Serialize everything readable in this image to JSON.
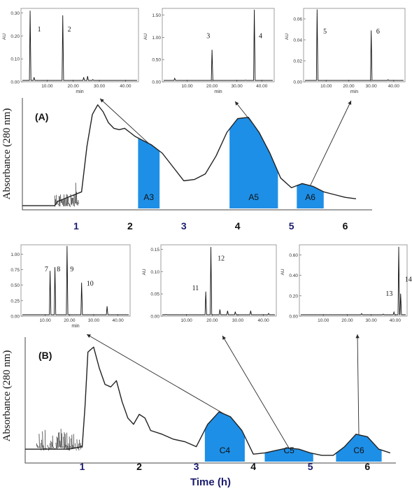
{
  "colors": {
    "fraction_fill": "#1e8fe6",
    "axis_number": "#1c1c6e",
    "trace": "#222222",
    "noise": "#3b3b3b",
    "arrow": "#2a2a2a"
  },
  "chart_data": [
    {
      "id": "panelA-main",
      "type": "line",
      "panel_label": "(A)",
      "ylabel": "Absorbance (280 nm)",
      "xlabel": "",
      "xlim": [
        0,
        6.5
      ],
      "x_ticks": [
        "1",
        "2",
        "3",
        "4",
        "5",
        "6"
      ],
      "x_tick_values": [
        1,
        2,
        3,
        4,
        5,
        6
      ],
      "trace": {
        "x": [
          0,
          0.6,
          0.65,
          1.1,
          1.2,
          1.3,
          1.4,
          1.5,
          1.6,
          1.7,
          1.8,
          1.9,
          2.0,
          2.1,
          2.2,
          2.4,
          2.6,
          2.8,
          3.0,
          3.2,
          3.4,
          3.6,
          3.8,
          4.0,
          4.2,
          4.4,
          4.6,
          4.8,
          5.0,
          5.2,
          5.4,
          5.6,
          5.8,
          6.0,
          6.2
        ],
        "y": [
          0.02,
          0.02,
          0.05,
          0.12,
          0.45,
          0.68,
          0.75,
          0.7,
          0.62,
          0.58,
          0.57,
          0.58,
          0.55,
          0.52,
          0.5,
          0.46,
          0.4,
          0.3,
          0.2,
          0.21,
          0.25,
          0.38,
          0.55,
          0.65,
          0.66,
          0.55,
          0.4,
          0.22,
          0.15,
          0.18,
          0.16,
          0.12,
          0.1,
          0.08,
          0.07
        ]
      },
      "noise_region": [
        0.6,
        1.05
      ],
      "fractions": [
        {
          "label": "A3",
          "x_start": 2.15,
          "x_end": 2.55
        },
        {
          "label": "A5",
          "x_start": 3.85,
          "x_end": 4.75
        },
        {
          "label": "A6",
          "x_start": 5.1,
          "x_end": 5.6
        }
      ]
    },
    {
      "id": "panelB-main",
      "type": "line",
      "panel_label": "(B)",
      "ylabel": "Absorbance (280 nm)",
      "xlabel": "Time (h)",
      "xlim": [
        0,
        6.5
      ],
      "x_ticks": [
        "1",
        "2",
        "3",
        "4",
        "5",
        "6"
      ],
      "x_tick_values": [
        1,
        2,
        3,
        4,
        5,
        6
      ],
      "trace": {
        "x": [
          0,
          0.75,
          1.0,
          1.05,
          1.1,
          1.2,
          1.3,
          1.4,
          1.5,
          1.6,
          1.7,
          1.8,
          1.9,
          2.0,
          2.1,
          2.2,
          2.4,
          2.6,
          2.8,
          3.0,
          3.2,
          3.4,
          3.6,
          3.8,
          4.0,
          4.2,
          4.4,
          4.6,
          4.8,
          5.0,
          5.2,
          5.4,
          5.6,
          5.8,
          6.0,
          6.2,
          6.4
        ],
        "y": [
          0.1,
          0.1,
          0.12,
          0.45,
          0.88,
          0.92,
          0.75,
          0.62,
          0.6,
          0.65,
          0.48,
          0.35,
          0.3,
          0.38,
          0.35,
          0.25,
          0.22,
          0.18,
          0.16,
          0.12,
          0.3,
          0.4,
          0.36,
          0.25,
          0.06,
          0.07,
          0.09,
          0.11,
          0.1,
          0.07,
          0.05,
          0.05,
          0.12,
          0.22,
          0.2,
          0.1,
          0.07
        ]
      },
      "noise_region": [
        0.2,
        1.0
      ],
      "fractions": [
        {
          "label": "C4",
          "x_start": 3.15,
          "x_end": 3.85
        },
        {
          "label": "C5",
          "x_start": 4.2,
          "x_end": 5.05
        },
        {
          "label": "C6",
          "x_start": 5.45,
          "x_end": 6.25
        }
      ]
    },
    {
      "id": "insetA3",
      "type": "line",
      "xlabel": "min",
      "ylabel": "AU",
      "xlim": [
        0,
        45
      ],
      "ylim": [
        0,
        0.32
      ],
      "x_ticks": [
        "10.00",
        "20.00",
        "30.00",
        "40.00"
      ],
      "x_tick_values": [
        10,
        20,
        30,
        40
      ],
      "y_ticks": [
        "0.00",
        "0.10",
        "0.20",
        "0.30"
      ],
      "y_tick_values": [
        0,
        0.1,
        0.2,
        0.3
      ],
      "peaks": [
        {
          "x": 3.5,
          "h": 0.31,
          "label": "1"
        },
        {
          "x": 5.0,
          "h": 0.02,
          "label": ""
        },
        {
          "x": 16.0,
          "h": 0.29,
          "label": "2"
        },
        {
          "x": 24.0,
          "h": 0.02,
          "label": ""
        },
        {
          "x": 25.5,
          "h": 0.025,
          "label": ""
        },
        {
          "x": 27.5,
          "h": 0.01,
          "label": ""
        },
        {
          "x": 42.5,
          "h": 0.005,
          "label": ""
        }
      ],
      "peak_labels_at": [
        {
          "label": "1",
          "x": 7.0,
          "y": 0.22
        },
        {
          "label": "2",
          "x": 18.5,
          "y": 0.22
        }
      ]
    },
    {
      "id": "insetA5",
      "type": "line",
      "xlabel": "min",
      "ylabel": "AU",
      "xlim": [
        0,
        45
      ],
      "ylim": [
        0,
        1.65
      ],
      "x_ticks": [
        "10.00",
        "20.00",
        "30.00",
        "40.00"
      ],
      "x_tick_values": [
        10,
        20,
        30,
        40
      ],
      "y_ticks": [
        "0.00",
        "0.50",
        "1.00",
        "1.50"
      ],
      "y_tick_values": [
        0,
        0.5,
        1.0,
        1.5
      ],
      "peaks": [
        {
          "x": 5.0,
          "h": 0.08,
          "label": ""
        },
        {
          "x": 20.0,
          "h": 0.72,
          "label": "3"
        },
        {
          "x": 33.5,
          "h": 0.04,
          "label": ""
        },
        {
          "x": 37.0,
          "h": 1.62,
          "label": "4"
        }
      ],
      "peak_labels_at": [
        {
          "label": "3",
          "x": 18.5,
          "y": 0.98
        },
        {
          "label": "4",
          "x": 39.5,
          "y": 0.98
        }
      ]
    },
    {
      "id": "insetA6",
      "type": "line",
      "xlabel": "min",
      "ylabel": "AU",
      "xlim": [
        0,
        45
      ],
      "ylim": [
        0,
        0.07
      ],
      "x_ticks": [
        "10.00",
        "20.00",
        "30.00",
        "40.00"
      ],
      "x_tick_values": [
        10,
        20,
        30,
        40
      ],
      "y_ticks": [
        "0.00",
        "0.02",
        "0.04",
        "0.06"
      ],
      "y_tick_values": [
        0,
        0.02,
        0.04,
        0.06
      ],
      "peaks": [
        {
          "x": 6.0,
          "h": 0.069,
          "label": "5"
        },
        {
          "x": 30.0,
          "h": 0.049,
          "label": "6"
        },
        {
          "x": 37.5,
          "h": 0.002,
          "label": ""
        }
      ],
      "peak_labels_at": [
        {
          "label": "5",
          "x": 9.5,
          "y": 0.046
        },
        {
          "label": "6",
          "x": 33.0,
          "y": 0.046
        }
      ]
    },
    {
      "id": "insetC4",
      "type": "line",
      "xlabel": "min",
      "ylabel": "",
      "xlim": [
        0,
        45
      ],
      "ylim": [
        0,
        1.15
      ],
      "x_ticks": [
        "10.00",
        "20.00",
        "30.00",
        "40.00"
      ],
      "x_tick_values": [
        10,
        20,
        30,
        40
      ],
      "y_ticks": [
        "0.00",
        "0.25",
        "0.50",
        "0.75",
        "1.00"
      ],
      "y_tick_values": [
        0,
        0.25,
        0.5,
        0.75,
        1.0
      ],
      "peaks": [
        {
          "x": 12.0,
          "h": 0.73,
          "label": "7"
        },
        {
          "x": 14.0,
          "h": 0.79,
          "label": "8"
        },
        {
          "x": 19.0,
          "h": 1.13,
          "label": "9"
        },
        {
          "x": 25.0,
          "h": 0.54,
          "label": "10"
        },
        {
          "x": 35.5,
          "h": 0.16,
          "label": ""
        }
      ],
      "peak_labels_at": [
        {
          "label": "7",
          "x": 10.5,
          "y": 0.72
        },
        {
          "label": "8",
          "x": 15.5,
          "y": 0.72
        },
        {
          "label": "9",
          "x": 21.0,
          "y": 0.72
        },
        {
          "label": "10",
          "x": 28.5,
          "y": 0.49
        }
      ]
    },
    {
      "id": "insetC5",
      "type": "line",
      "xlabel": "",
      "ylabel": "AU",
      "xlim": [
        0,
        45
      ],
      "ylim": [
        0,
        0.16
      ],
      "x_ticks": [
        "10.00",
        "20.00",
        "30.00",
        "40.00"
      ],
      "x_tick_values": [
        10,
        20,
        30,
        40
      ],
      "y_ticks": [
        "0.00",
        "0.05",
        "0.10",
        "0.15"
      ],
      "y_tick_values": [
        0,
        0.05,
        0.1,
        0.15
      ],
      "peaks": [
        {
          "x": 2.0,
          "h": 0.004,
          "label": ""
        },
        {
          "x": 17.5,
          "h": 0.055,
          "label": "11"
        },
        {
          "x": 19.5,
          "h": 0.155,
          "label": "12"
        },
        {
          "x": 23.0,
          "h": 0.015,
          "label": ""
        },
        {
          "x": 26.0,
          "h": 0.012,
          "label": ""
        },
        {
          "x": 29.0,
          "h": 0.01,
          "label": ""
        },
        {
          "x": 35.0,
          "h": 0.012,
          "label": ""
        },
        {
          "x": 42.0,
          "h": 0.006,
          "label": ""
        }
      ],
      "peak_labels_at": [
        {
          "label": "11",
          "x": 13.5,
          "y": 0.058
        },
        {
          "label": "12",
          "x": 23.5,
          "y": 0.125
        }
      ]
    },
    {
      "id": "insetC6",
      "type": "line",
      "xlabel": "",
      "ylabel": "AU",
      "xlim": [
        0,
        45
      ],
      "ylim": [
        0,
        0.7
      ],
      "x_ticks": [
        "10.00",
        "20.00",
        "30.00",
        "40.00"
      ],
      "x_tick_values": [
        10,
        20,
        30,
        40
      ],
      "y_ticks": [
        "0.00",
        "0.20",
        "0.40",
        "0.60"
      ],
      "y_tick_values": [
        0,
        0.2,
        0.4,
        0.6
      ],
      "peaks": [
        {
          "x": 2.0,
          "h": 0.01,
          "label": ""
        },
        {
          "x": 26.0,
          "h": 0.025,
          "label": ""
        },
        {
          "x": 35.0,
          "h": 0.02,
          "label": ""
        },
        {
          "x": 39.5,
          "h": 0.04,
          "label": ""
        },
        {
          "x": 41.5,
          "h": 0.68,
          "label": "13"
        },
        {
          "x": 42.3,
          "h": 0.22,
          "label": "14"
        }
      ],
      "peak_labels_at": [
        {
          "label": "13",
          "x": 37.5,
          "y": 0.2
        },
        {
          "label": "14",
          "x": 45.5,
          "y": 0.34
        }
      ]
    }
  ]
}
